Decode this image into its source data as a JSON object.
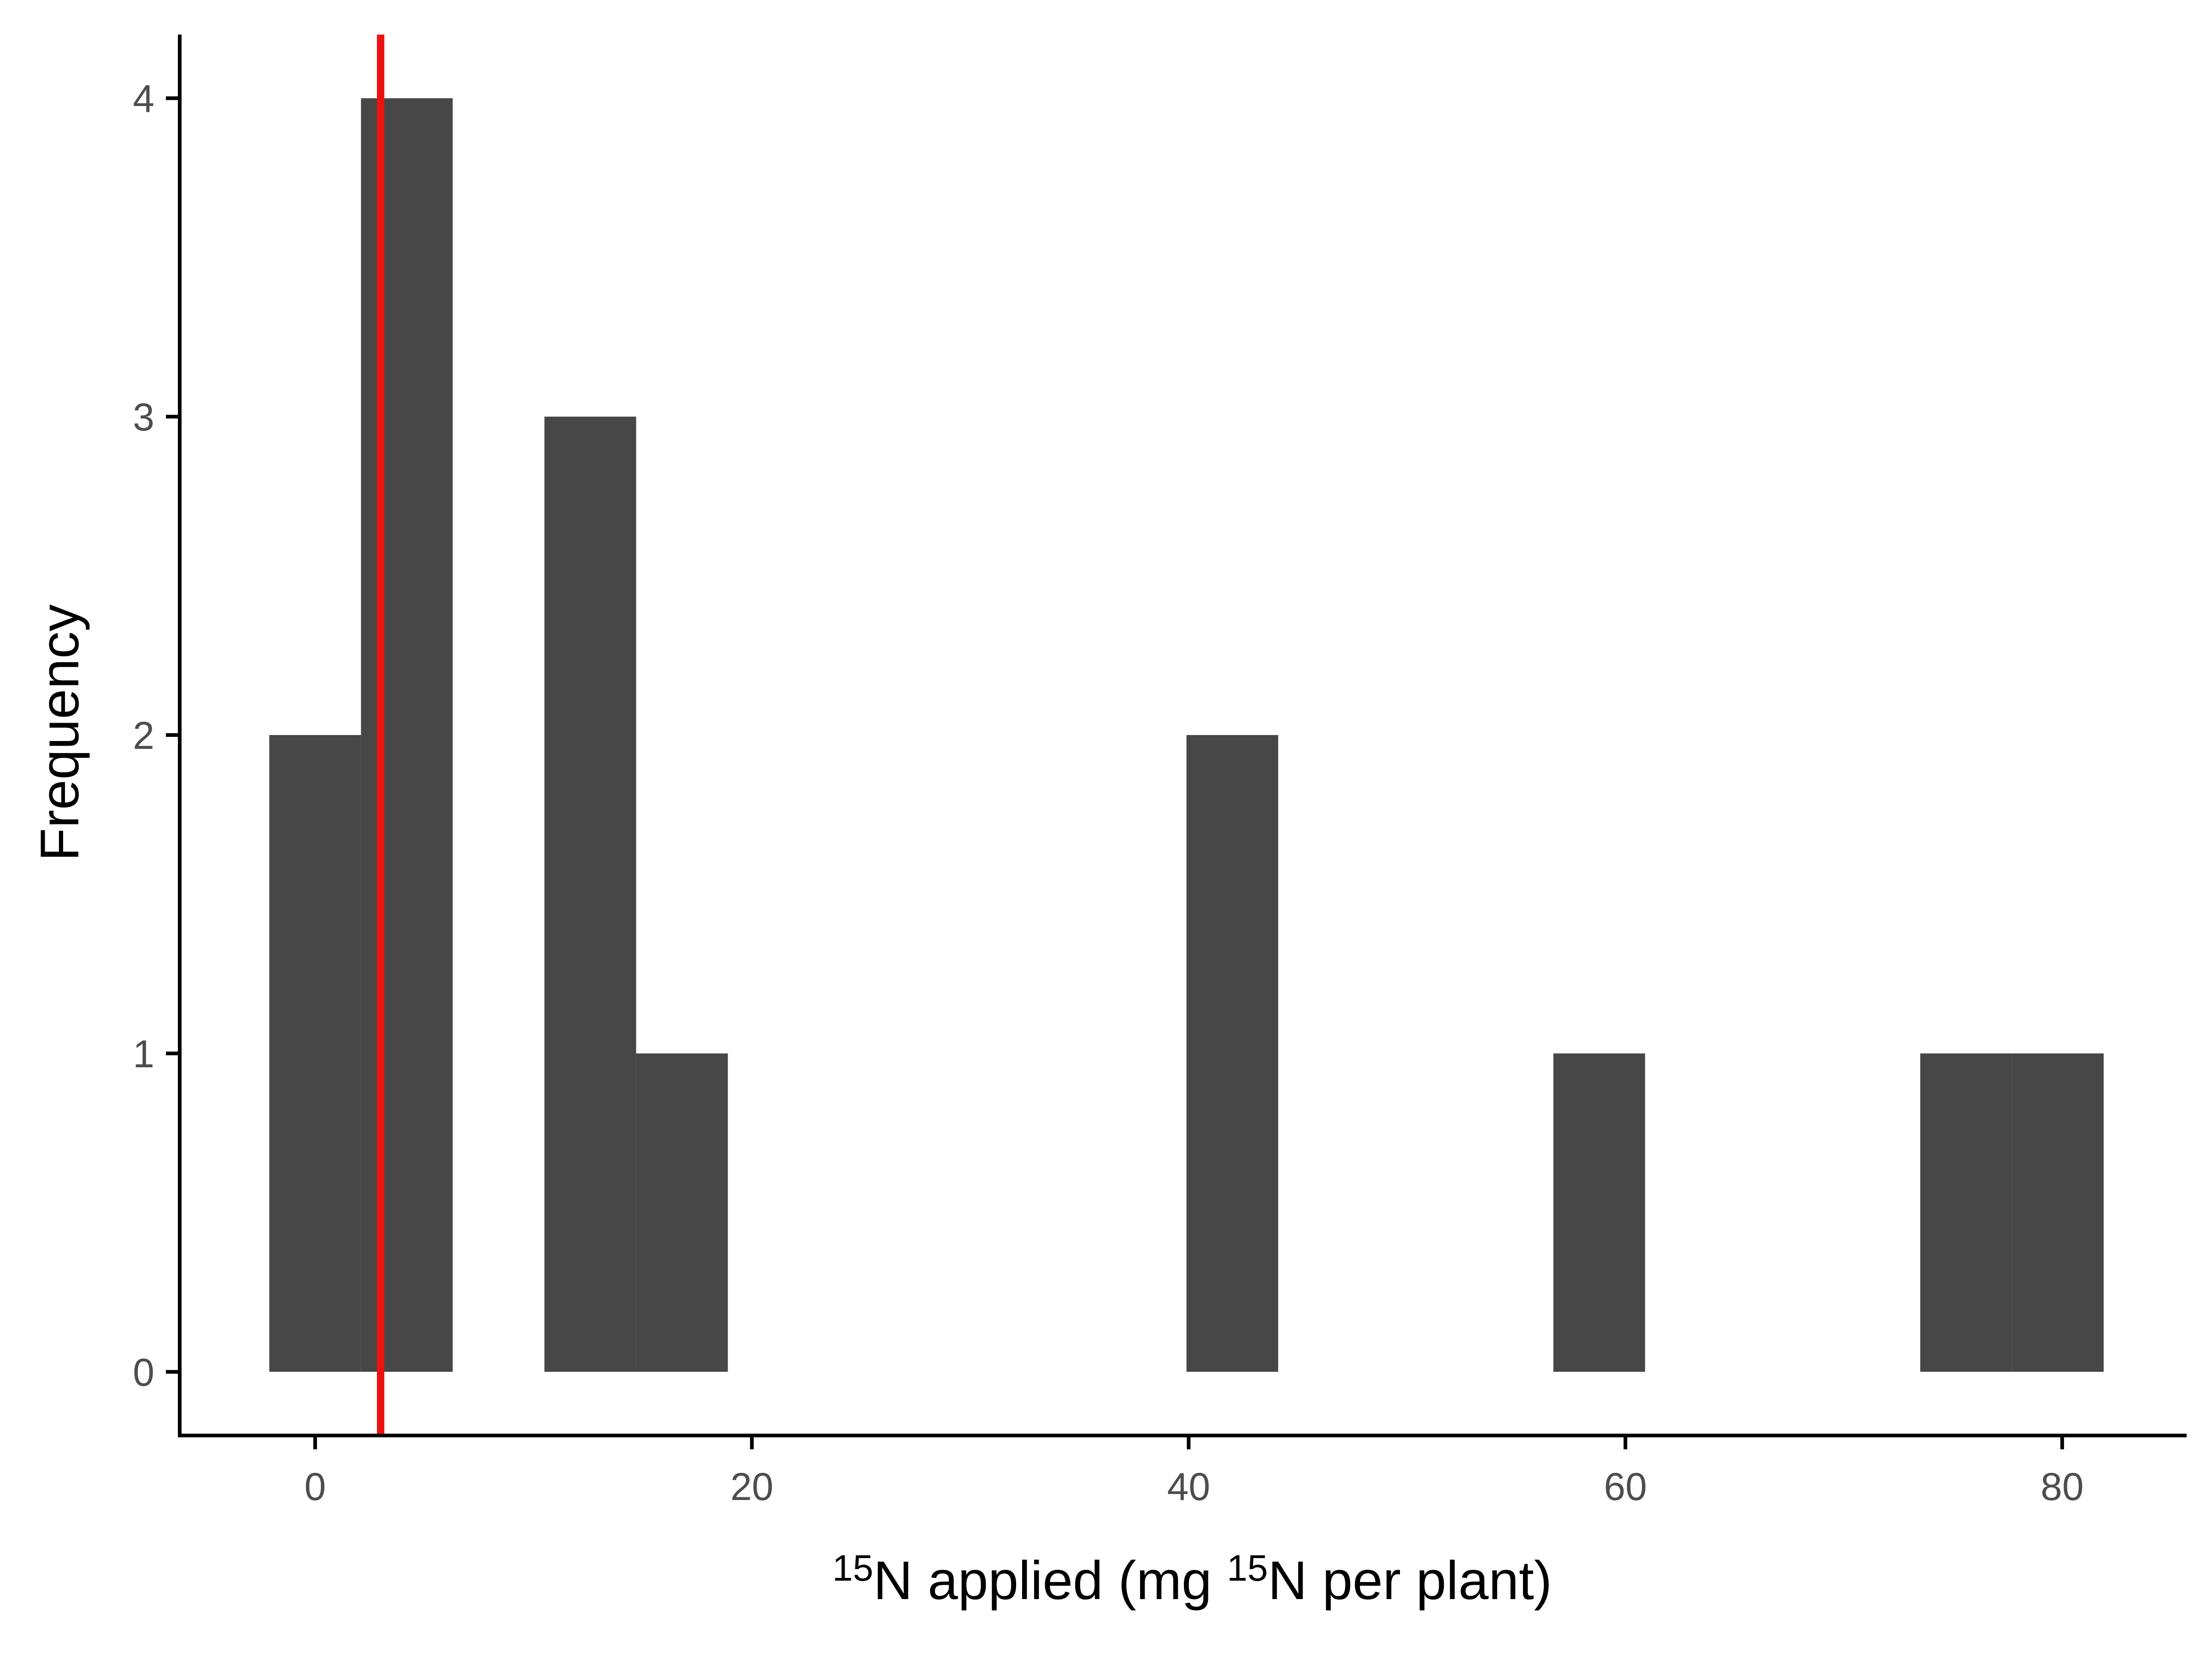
{
  "chart_data": {
    "type": "bar",
    "subtype": "histogram",
    "title": "",
    "xlabel": {
      "sup1": "15",
      "part1": "N applied (mg ",
      "sup2": "15",
      "part2": "N per plant)"
    },
    "ylabel": "Frequency",
    "xlim": [
      -6.2,
      85.7
    ],
    "ylim": [
      -0.2,
      4.2
    ],
    "x_ticks": [
      0,
      20,
      40,
      60,
      80
    ],
    "y_ticks": [
      0,
      1,
      2,
      3,
      4
    ],
    "bin_width": 4.2,
    "bins": [
      {
        "x0": -2.1,
        "x1": 2.1,
        "count": 2
      },
      {
        "x0": 2.1,
        "x1": 6.3,
        "count": 4
      },
      {
        "x0": 10.5,
        "x1": 14.7,
        "count": 3
      },
      {
        "x0": 14.7,
        "x1": 18.9,
        "count": 1
      },
      {
        "x0": 39.9,
        "x1": 44.1,
        "count": 2
      },
      {
        "x0": 56.7,
        "x1": 60.9,
        "count": 1
      },
      {
        "x0": 73.5,
        "x1": 77.7,
        "count": 1
      },
      {
        "x0": 77.7,
        "x1": 81.9,
        "count": 1
      }
    ],
    "reference_line": {
      "x": 3,
      "color": "#ee1111"
    },
    "bar_color": "#474747",
    "grid": false,
    "legend": "none"
  }
}
